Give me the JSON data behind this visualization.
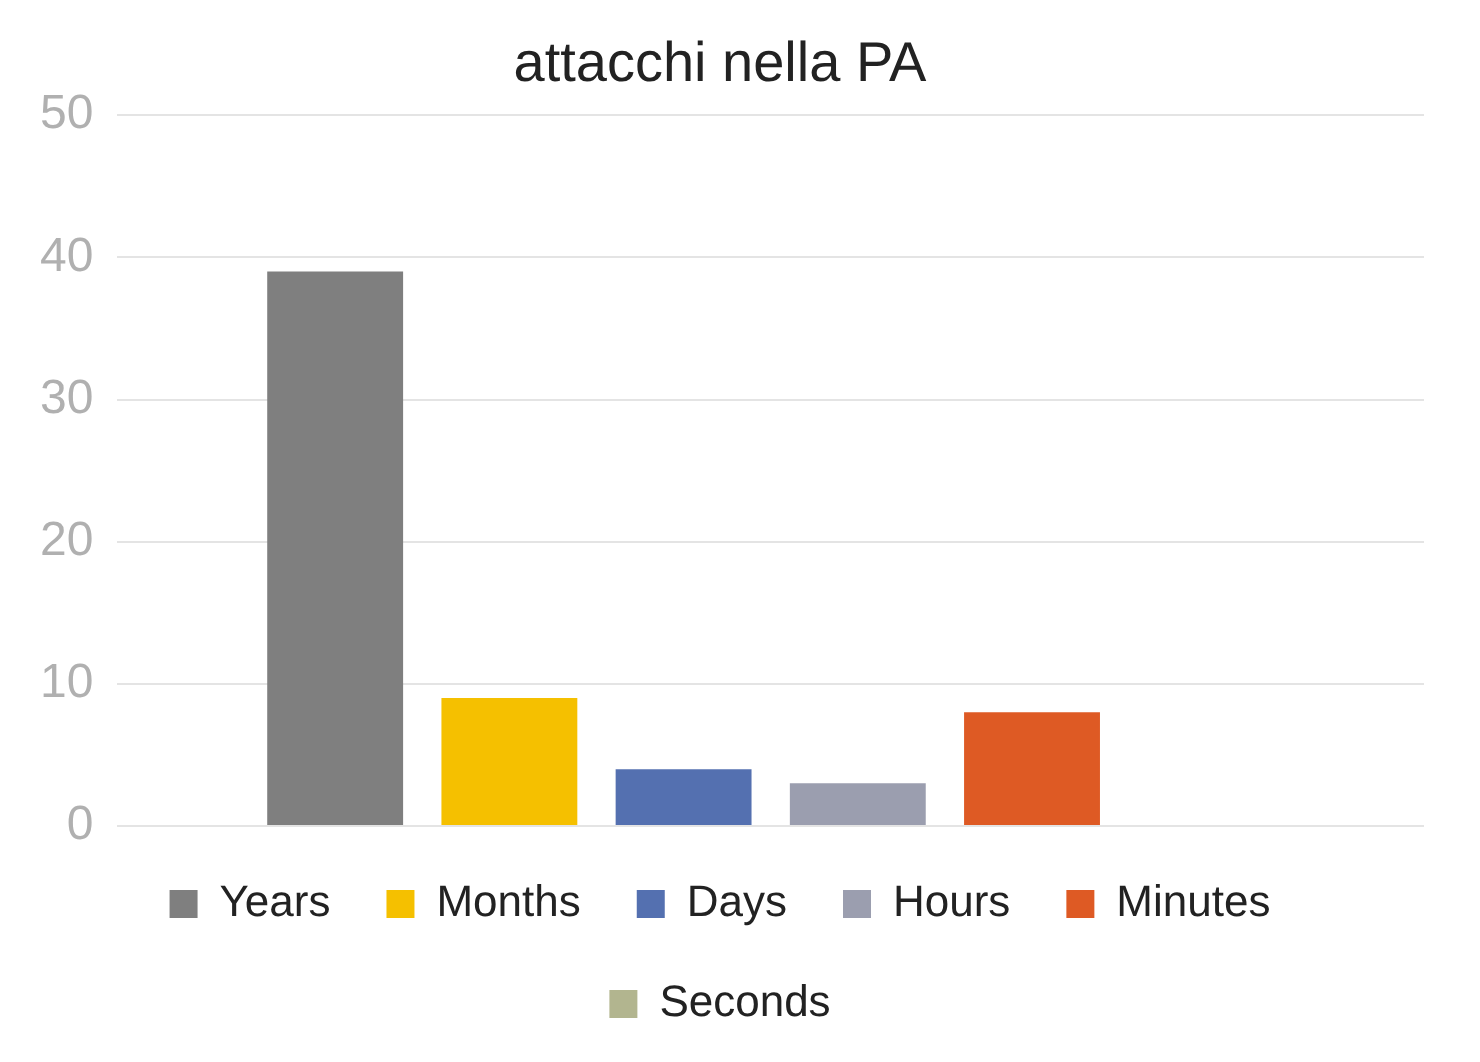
{
  "chart_data": {
    "type": "bar",
    "title": "attacchi nella PA",
    "categories": [
      null
    ],
    "series": [
      {
        "name": "Years",
        "color": "#7f7f7f",
        "values": [
          39
        ]
      },
      {
        "name": "Months",
        "color": "#f5c000",
        "values": [
          9
        ]
      },
      {
        "name": "Days",
        "color": "#5470b0",
        "values": [
          4
        ]
      },
      {
        "name": "Hours",
        "color": "#9b9eaf",
        "values": [
          3
        ]
      },
      {
        "name": "Minutes",
        "color": "#de5a24",
        "values": [
          8
        ]
      },
      {
        "name": "Seconds",
        "color": "#b2b58f",
        "values": [
          0
        ]
      }
    ],
    "ylim": [
      0,
      50
    ],
    "yticks": [
      0,
      10,
      20,
      30,
      40,
      50
    ],
    "grid": "y",
    "legend": "bottom"
  }
}
